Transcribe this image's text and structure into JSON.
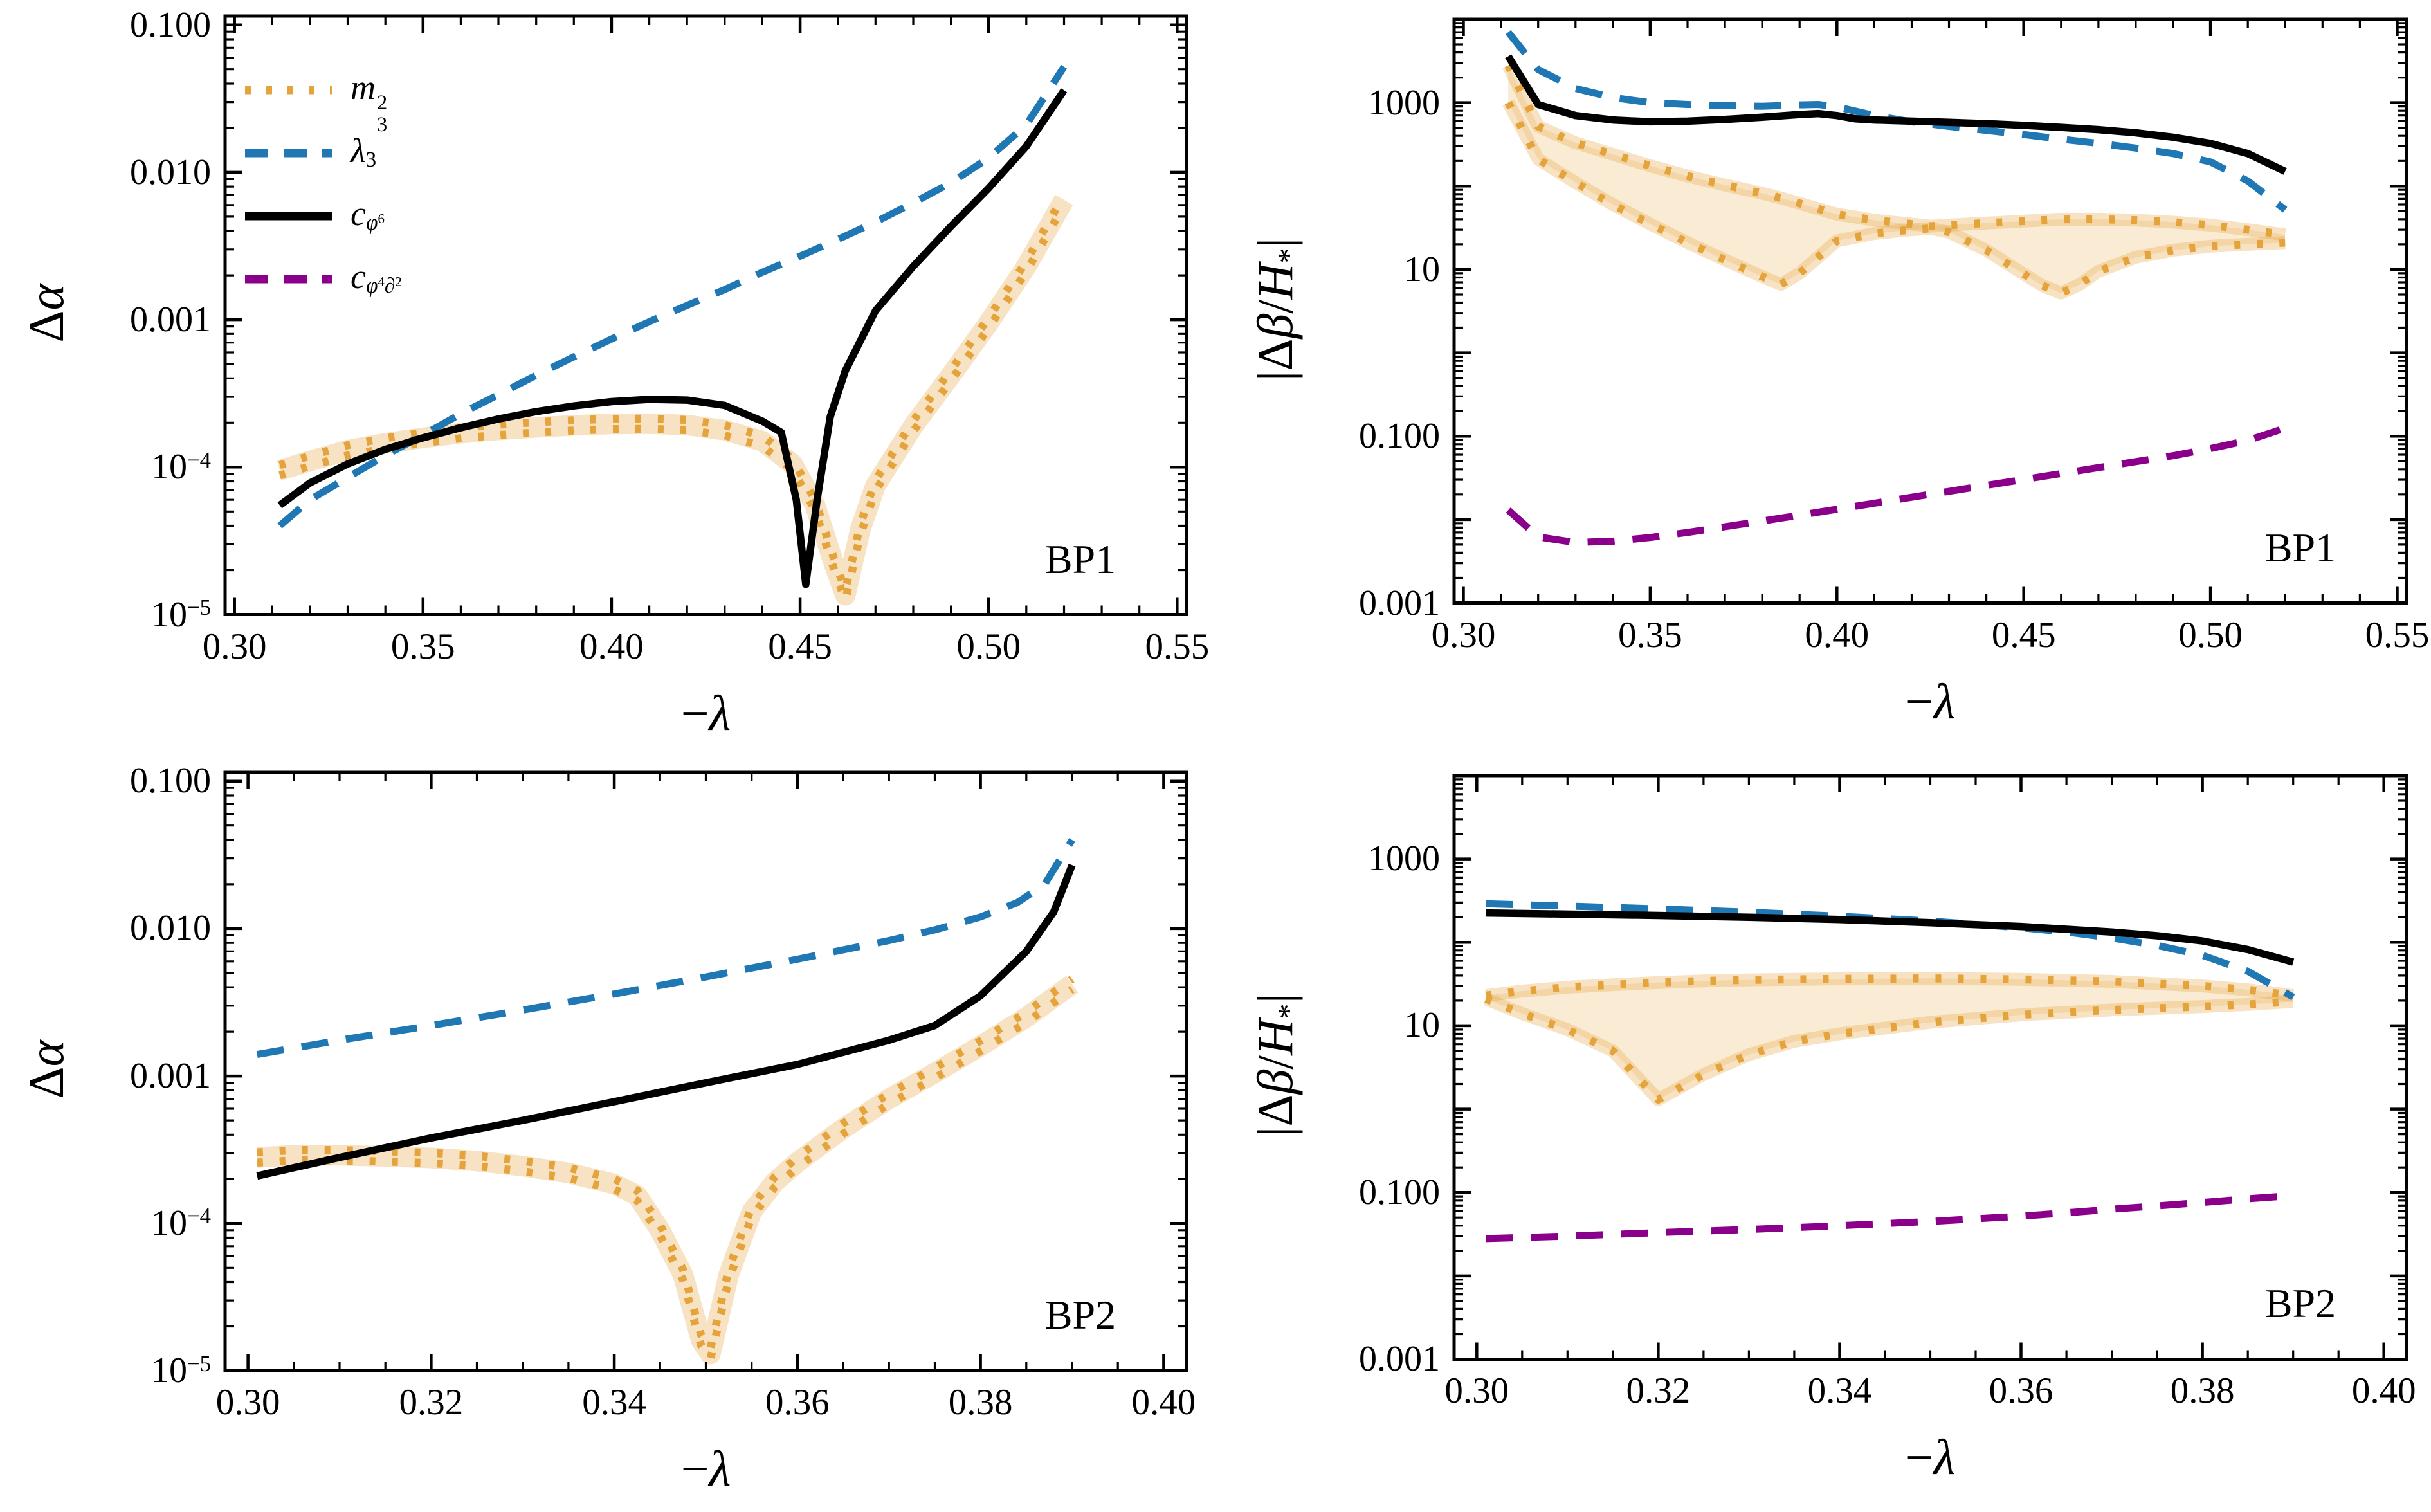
{
  "page": {
    "background": "#FFFFFF"
  },
  "colors": {
    "m32": "#E5A33C",
    "m32_band": "rgba(230,163,60,0.22)",
    "m32_glow": "rgba(230,163,60,0.30)",
    "lambda3": "#1F77B4",
    "cphi6": "#000000",
    "cphi4d2": "#8B008B",
    "frame": "#000000"
  },
  "legend": {
    "entries": [
      {
        "key": "m32",
        "label": "m_3^2",
        "style": "dotted"
      },
      {
        "key": "lambda3",
        "label": "λ_3",
        "style": "dashed"
      },
      {
        "key": "cphi6",
        "label": "c_{φ^6}",
        "style": "solid"
      },
      {
        "key": "cphi4d2",
        "label": "c_{φ^4∂^2}",
        "style": "dashed"
      }
    ],
    "position": "top-left-panel"
  },
  "chart_data": [
    {
      "type": "line",
      "panel": "BP1",
      "xlabel": "−λ",
      "ylabel": "Δα",
      "grid": false,
      "x_axis": {
        "min": 0.2975,
        "max": 0.5525,
        "major": [
          0.3,
          0.35,
          0.4,
          0.45,
          0.5,
          0.55
        ],
        "labels": [
          "0.30",
          "0.35",
          "0.40",
          "0.45",
          "0.50",
          "0.55"
        ],
        "minor_step": 0.01
      },
      "y_axis": {
        "scale": "log",
        "log_min": -5,
        "log_max": -0.94,
        "decades": [
          -5,
          -4,
          -3,
          -2,
          -1
        ],
        "tick_labels": [
          {
            "exp": -1,
            "label": "0.100"
          },
          {
            "exp": -2,
            "label": "0.010"
          },
          {
            "exp": -3,
            "label": "0.001"
          },
          {
            "exp": -4,
            "label": "10^{−4}"
          },
          {
            "exp": -5,
            "label": "10^{−5}"
          }
        ]
      },
      "has_legend": true,
      "series": [
        {
          "key": "m32",
          "name": "m_3^2",
          "style": "dotted",
          "ribbon": true,
          "x": [
            0.312,
            0.32,
            0.33,
            0.34,
            0.35,
            0.36,
            0.37,
            0.38,
            0.39,
            0.4,
            0.41,
            0.42,
            0.43,
            0.44,
            0.448,
            0.454,
            0.459,
            0.462,
            0.466,
            0.47,
            0.48,
            0.49,
            0.5,
            0.51,
            0.52
          ],
          "y": [
            9.5e-05,
            0.00011,
            0.00013,
            0.000145,
            0.000158,
            0.00017,
            0.000179,
            0.000186,
            0.000192,
            0.000196,
            0.000197,
            0.000193,
            0.000178,
            0.00015,
            0.000105,
            5.5e-05,
            2.2e-05,
            1.35e-05,
            3.8e-05,
            7.5e-05,
            0.00019,
            0.00042,
            0.00095,
            0.0023,
            0.0065
          ]
        },
        {
          "key": "lambda3",
          "name": "λ_3",
          "style": "dashed",
          "x": [
            0.312,
            0.32,
            0.33,
            0.34,
            0.35,
            0.36,
            0.37,
            0.38,
            0.39,
            0.4,
            0.41,
            0.42,
            0.43,
            0.44,
            0.45,
            0.46,
            0.47,
            0.48,
            0.49,
            0.5,
            0.51,
            0.52
          ],
          "y": [
            4e-05,
            6e-05,
            8.5e-05,
            0.00012,
            0.000165,
            0.00023,
            0.00031,
            0.00042,
            0.00056,
            0.00074,
            0.00097,
            0.00125,
            0.0016,
            0.0021,
            0.0027,
            0.0035,
            0.0046,
            0.0062,
            0.0085,
            0.0125,
            0.021,
            0.052
          ]
        },
        {
          "key": "cphi6",
          "name": "c_{φ^6}",
          "style": "solid",
          "x": [
            0.312,
            0.32,
            0.33,
            0.34,
            0.35,
            0.36,
            0.37,
            0.38,
            0.39,
            0.4,
            0.41,
            0.42,
            0.43,
            0.44,
            0.445,
            0.449,
            0.4515,
            0.4545,
            0.458,
            0.462,
            0.47,
            0.48,
            0.49,
            0.5,
            0.51,
            0.52
          ],
          "y": [
            5.5e-05,
            7.8e-05,
            0.000105,
            0.000132,
            0.000158,
            0.000185,
            0.000212,
            0.000238,
            0.00026,
            0.000278,
            0.000288,
            0.000285,
            0.000262,
            0.000205,
            0.000172,
            6e-05,
            1.6e-05,
            6e-05,
            0.00022,
            0.00045,
            0.00115,
            0.0023,
            0.0043,
            0.0078,
            0.015,
            0.036
          ]
        }
      ]
    },
    {
      "type": "line",
      "panel": "BP1",
      "xlabel": "−λ",
      "ylabel": "|Δβ/H_*|",
      "grid": false,
      "x_axis": {
        "min": 0.2975,
        "max": 0.5525,
        "major": [
          0.3,
          0.35,
          0.4,
          0.45,
          0.5,
          0.55
        ],
        "labels": [
          "0.30",
          "0.35",
          "0.40",
          "0.45",
          "0.50",
          "0.55"
        ],
        "minor_step": 0.01
      },
      "y_axis": {
        "scale": "log",
        "log_min": -3,
        "log_max": 4,
        "decades": [
          -3,
          -2,
          -1,
          0,
          1,
          2,
          3,
          4
        ],
        "tick_labels": [
          {
            "exp": 3,
            "label": "1000"
          },
          {
            "exp": 1,
            "label": "10"
          },
          {
            "exp": -1,
            "label": "0.100"
          },
          {
            "exp": -3,
            "label": "0.001"
          }
        ]
      },
      "has_legend": false,
      "series": [
        {
          "key": "m32",
          "name": "m_3^2",
          "style": "dotted",
          "band": {
            "x": [
              0.312,
              0.32,
              0.33,
              0.34,
              0.35,
              0.36,
              0.37,
              0.38,
              0.385,
              0.39,
              0.4,
              0.41,
              0.42,
              0.425,
              0.43,
              0.44,
              0.45,
              0.455,
              0.46,
              0.465,
              0.47,
              0.48,
              0.49,
              0.5,
              0.51,
              0.52
            ],
            "upper": [
              2800,
              520,
              330,
              240,
              175,
              132,
              103,
              82,
              72,
              62,
              46,
              39,
              35,
              33,
              34,
              36,
              38,
              39,
              40,
              40,
              40,
              39,
              37,
              34,
              30,
              26
            ],
            "lower": [
              1000,
              210,
              110,
              60,
              35,
              21,
              13,
              8.2,
              6.6,
              9,
              22,
              27,
              30,
              31,
              28,
              17,
              8.8,
              6.4,
              5.2,
              6.6,
              9.5,
              14,
              17,
              19,
              20,
              21
            ]
          }
        },
        {
          "key": "lambda3",
          "name": "λ_3",
          "style": "dashed",
          "x": [
            0.312,
            0.32,
            0.33,
            0.34,
            0.35,
            0.36,
            0.37,
            0.38,
            0.39,
            0.395,
            0.4,
            0.41,
            0.42,
            0.43,
            0.44,
            0.45,
            0.46,
            0.47,
            0.48,
            0.49,
            0.5,
            0.51,
            0.52
          ],
          "y": [
            7000,
            2500,
            1480,
            1150,
            1000,
            950,
            920,
            905,
            940,
            950,
            890,
            700,
            590,
            520,
            465,
            415,
            365,
            325,
            285,
            245,
            195,
            115,
            52
          ]
        },
        {
          "key": "cphi6",
          "name": "c_{φ^6}",
          "style": "solid",
          "x": [
            0.312,
            0.32,
            0.33,
            0.34,
            0.35,
            0.36,
            0.37,
            0.38,
            0.39,
            0.395,
            0.4,
            0.405,
            0.41,
            0.42,
            0.43,
            0.44,
            0.45,
            0.46,
            0.47,
            0.48,
            0.49,
            0.5,
            0.51,
            0.52
          ],
          "y": [
            3600,
            950,
            700,
            620,
            590,
            600,
            630,
            670,
            720,
            740,
            700,
            640,
            620,
            600,
            580,
            560,
            535,
            505,
            475,
            435,
            385,
            325,
            245,
            150
          ]
        },
        {
          "key": "cphi4d2",
          "name": "c_{φ^4∂^2}",
          "style": "dashed",
          "x": [
            0.312,
            0.32,
            0.33,
            0.34,
            0.35,
            0.36,
            0.37,
            0.38,
            0.39,
            0.4,
            0.41,
            0.42,
            0.43,
            0.44,
            0.45,
            0.46,
            0.47,
            0.48,
            0.49,
            0.5,
            0.51,
            0.52
          ],
          "y": [
            0.013,
            0.0062,
            0.0053,
            0.0055,
            0.0061,
            0.007,
            0.0082,
            0.0096,
            0.0113,
            0.0133,
            0.0157,
            0.0185,
            0.0218,
            0.0257,
            0.0302,
            0.0356,
            0.042,
            0.0495,
            0.0583,
            0.071,
            0.089,
            0.125
          ]
        }
      ]
    },
    {
      "type": "line",
      "panel": "BP2",
      "xlabel": "−λ",
      "ylabel": "Δα",
      "grid": false,
      "x_axis": {
        "min": 0.2975,
        "max": 0.4025,
        "major": [
          0.3,
          0.32,
          0.34,
          0.36,
          0.38,
          0.4
        ],
        "labels": [
          "0.30",
          "0.32",
          "0.34",
          "0.36",
          "0.38",
          "0.40"
        ],
        "minor_step": 0.005
      },
      "y_axis": {
        "scale": "log",
        "log_min": -5,
        "log_max": -0.94,
        "decades": [
          -5,
          -4,
          -3,
          -2,
          -1
        ],
        "tick_labels": [
          {
            "exp": -1,
            "label": "0.100"
          },
          {
            "exp": -2,
            "label": "0.010"
          },
          {
            "exp": -3,
            "label": "0.001"
          },
          {
            "exp": -4,
            "label": "10^{−4}"
          },
          {
            "exp": -5,
            "label": "10^{−5}"
          }
        ]
      },
      "has_legend": false,
      "series": [
        {
          "key": "m32",
          "name": "m_3^2",
          "style": "dotted",
          "ribbon": true,
          "x": [
            0.301,
            0.305,
            0.31,
            0.315,
            0.32,
            0.325,
            0.33,
            0.335,
            0.34,
            0.3425,
            0.345,
            0.3475,
            0.3495,
            0.3505,
            0.3525,
            0.355,
            0.3575,
            0.36,
            0.365,
            0.37,
            0.375,
            0.38,
            0.385,
            0.39
          ],
          "y": [
            0.00028,
            0.00029,
            0.00029,
            0.000285,
            0.000278,
            0.000265,
            0.000245,
            0.00022,
            0.000185,
            0.000155,
            9e-05,
            4.5e-05,
            1.6e-05,
            1.3e-05,
            4.5e-05,
            0.00012,
            0.00019,
            0.00026,
            0.00044,
            0.0007,
            0.00105,
            0.0016,
            0.0025,
            0.0042
          ]
        },
        {
          "key": "lambda3",
          "name": "λ_3",
          "style": "dashed",
          "x": [
            0.301,
            0.31,
            0.32,
            0.33,
            0.34,
            0.35,
            0.36,
            0.37,
            0.375,
            0.38,
            0.384,
            0.387,
            0.39
          ],
          "y": [
            0.0014,
            0.00175,
            0.0022,
            0.0028,
            0.0036,
            0.0047,
            0.0062,
            0.0083,
            0.0098,
            0.012,
            0.015,
            0.02,
            0.04
          ]
        },
        {
          "key": "cphi6",
          "name": "c_{φ^6}",
          "style": "solid",
          "x": [
            0.301,
            0.31,
            0.32,
            0.33,
            0.34,
            0.35,
            0.36,
            0.37,
            0.375,
            0.38,
            0.385,
            0.388,
            0.39
          ],
          "y": [
            0.00021,
            0.00028,
            0.00038,
            0.0005,
            0.00067,
            0.0009,
            0.0012,
            0.00175,
            0.0022,
            0.0035,
            0.007,
            0.013,
            0.027
          ]
        }
      ]
    },
    {
      "type": "line",
      "panel": "BP2",
      "xlabel": "−λ",
      "ylabel": "|Δβ/H_*|",
      "grid": false,
      "x_axis": {
        "min": 0.2975,
        "max": 0.4025,
        "major": [
          0.3,
          0.32,
          0.34,
          0.36,
          0.38,
          0.4
        ],
        "labels": [
          "0.30",
          "0.32",
          "0.34",
          "0.36",
          "0.38",
          "0.40"
        ],
        "minor_step": 0.005
      },
      "y_axis": {
        "scale": "log",
        "log_min": -3,
        "log_max": 4,
        "decades": [
          -3,
          -2,
          -1,
          0,
          1,
          2,
          3,
          4
        ],
        "tick_labels": [
          {
            "exp": 3,
            "label": "1000"
          },
          {
            "exp": 1,
            "label": "10"
          },
          {
            "exp": -1,
            "label": "0.100"
          },
          {
            "exp": -3,
            "label": "0.001"
          }
        ]
      },
      "has_legend": false,
      "series": [
        {
          "key": "m32",
          "name": "m_3^2",
          "style": "dotted",
          "band": {
            "x": [
              0.301,
              0.305,
              0.31,
              0.315,
              0.32,
              0.325,
              0.33,
              0.335,
              0.34,
              0.35,
              0.36,
              0.37,
              0.38,
              0.385,
              0.39
            ],
            "upper": [
              23,
              26,
              29,
              31,
              33,
              34.5,
              35.5,
              36,
              36.5,
              37,
              36,
              34,
              30,
              27,
              23
            ],
            "lower": [
              21,
              14,
              9,
              5,
              1.3,
              2.6,
              4.5,
              6.5,
              8,
              11,
              13.5,
              15.5,
              17,
              18,
              19.5
            ]
          }
        },
        {
          "key": "lambda3",
          "name": "λ_3",
          "style": "dashed",
          "x": [
            0.301,
            0.31,
            0.32,
            0.33,
            0.34,
            0.35,
            0.36,
            0.365,
            0.37,
            0.375,
            0.38,
            0.385,
            0.39
          ],
          "y": [
            290,
            272,
            252,
            230,
            206,
            180,
            150,
            133,
            113,
            92,
            70,
            45,
            22
          ]
        },
        {
          "key": "cphi6",
          "name": "c_{φ^6}",
          "style": "solid",
          "x": [
            0.301,
            0.31,
            0.32,
            0.33,
            0.34,
            0.35,
            0.36,
            0.37,
            0.375,
            0.38,
            0.385,
            0.39
          ],
          "y": [
            225,
            218,
            210,
            200,
            188,
            172,
            155,
            133,
            120,
            104,
            82,
            58
          ]
        },
        {
          "key": "cphi4d2",
          "name": "c_{φ^4∂^2}",
          "style": "dashed",
          "x": [
            0.301,
            0.31,
            0.32,
            0.33,
            0.34,
            0.35,
            0.36,
            0.365,
            0.37,
            0.375,
            0.38,
            0.385,
            0.39
          ],
          "y": [
            0.028,
            0.03,
            0.033,
            0.036,
            0.04,
            0.045,
            0.052,
            0.057,
            0.063,
            0.069,
            0.076,
            0.084,
            0.092
          ]
        }
      ]
    }
  ]
}
